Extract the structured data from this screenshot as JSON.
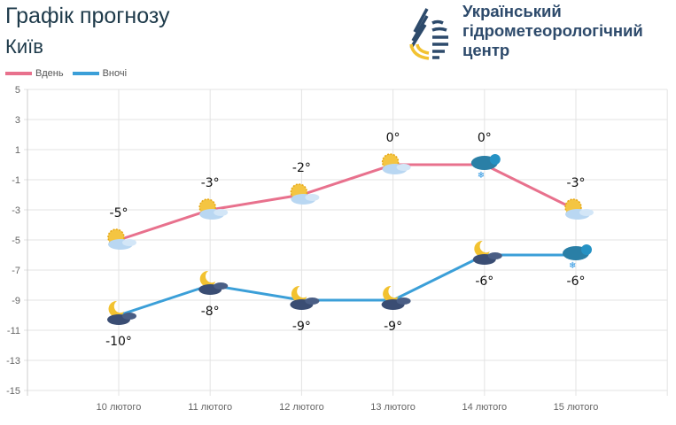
{
  "header": {
    "title": "Графік прогнозу",
    "city": "Київ",
    "org_lines": [
      "Український",
      "гідрометеорологічний",
      "центр"
    ]
  },
  "chart_data": {
    "type": "line",
    "categories": [
      "10 лютого",
      "11 лютого",
      "12 лютого",
      "13 лютого",
      "14 лютого",
      "15 лютого"
    ],
    "series": [
      {
        "name": "Вдень",
        "color": "#e8718d",
        "values": [
          -5,
          -3,
          -2,
          0,
          0,
          -3
        ],
        "labels": [
          "-5°",
          "-3°",
          "-2°",
          "0°",
          "0°",
          "-3°"
        ],
        "icons": [
          "sun-cloud",
          "sun-cloud",
          "sun-cloud",
          "sun-cloud",
          "snow-cloud",
          "sun-cloud"
        ]
      },
      {
        "name": "Вночі",
        "color": "#3b9fd8",
        "values": [
          -10,
          -8,
          -9,
          -9,
          -6,
          -6
        ],
        "labels": [
          "-10°",
          "-8°",
          "-9°",
          "-9°",
          "-6°",
          "-6°"
        ],
        "icons": [
          "moon-cloud",
          "moon-cloud",
          "moon-cloud",
          "moon-cloud",
          "moon-cloud",
          "snow-cloud"
        ]
      }
    ],
    "ylim": [
      -15,
      5
    ],
    "yticks": [
      "5",
      "3",
      "1",
      "-1",
      "-3",
      "-5",
      "-7",
      "-9",
      "-11",
      "-13",
      "-15"
    ],
    "grid": true,
    "legend": "top-left"
  }
}
